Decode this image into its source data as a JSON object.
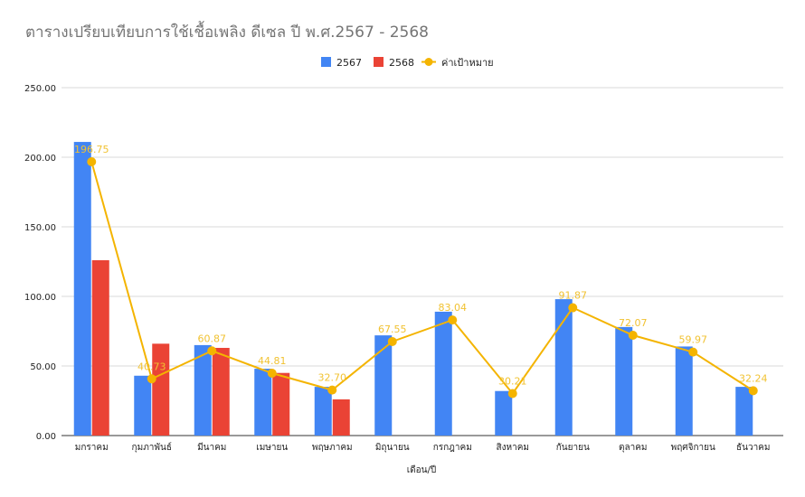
{
  "chart_data": {
    "type": "bar",
    "title": "ตารางเปรียบเทียบการใช้เชื้อเพลิง ดีเซล ปี พ.ศ.2567 - 2568",
    "xlabel": "เดือน/ปี",
    "ylabel": "",
    "ylim": [
      0,
      250
    ],
    "yticks": [
      "0.00",
      "50.00",
      "100.00",
      "150.00",
      "200.00",
      "250.00"
    ],
    "grid": true,
    "legend_position": "top",
    "categories": [
      "มกราคม",
      "กุมภาพันธ์",
      "มีนาคม",
      "เมษายน",
      "พฤษภาคม",
      "มิถุนายน",
      "กรกฎาคม",
      "สิงหาคม",
      "กันยายน",
      "ตุลาคม",
      "พฤศจิกายน",
      "ธันวาคม"
    ],
    "series": [
      {
        "name": "2567",
        "type": "bar",
        "color": "#4285f4",
        "values": [
          211,
          43,
          65,
          48,
          35,
          72,
          89,
          32,
          98,
          78,
          64,
          35
        ]
      },
      {
        "name": "2568",
        "type": "bar",
        "color": "#ea4335",
        "values": [
          126,
          66,
          63,
          45,
          26,
          null,
          null,
          null,
          null,
          null,
          null,
          null
        ]
      },
      {
        "name": "ค่าเป้าหมาย",
        "type": "line",
        "color": "#f4b400",
        "values": [
          196.75,
          40.73,
          60.87,
          44.81,
          32.7,
          67.55,
          83.04,
          30.21,
          91.87,
          72.07,
          59.97,
          32.24
        ],
        "labels": [
          "196.75",
          "40.73",
          "60.87",
          "44.81",
          "32.70",
          "67.55",
          "83.04",
          "30.21",
          "91.87",
          "72.07",
          "59.97",
          "32.24"
        ]
      }
    ]
  }
}
